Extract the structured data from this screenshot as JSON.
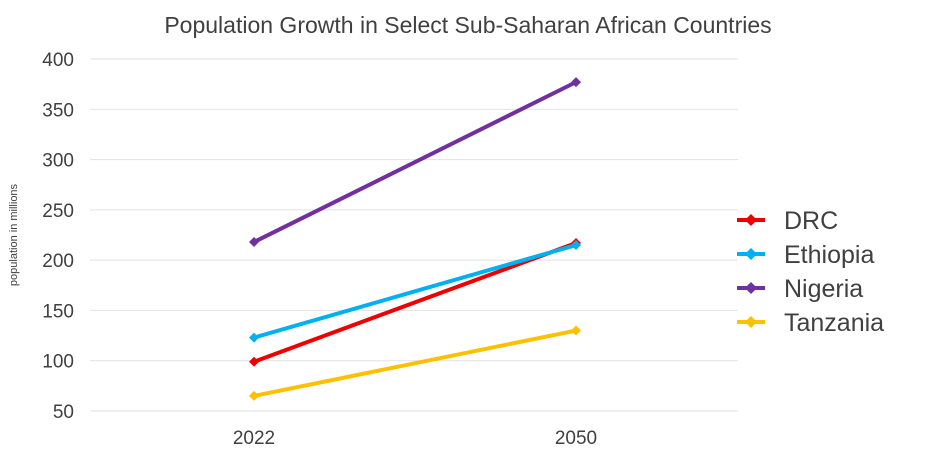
{
  "chart_data": {
    "type": "line",
    "title": "Population Growth in Select Sub-Saharan African Countries",
    "xlabel": "",
    "ylabel": "population in millions",
    "categories": [
      "2022",
      "2050"
    ],
    "ylim": [
      50,
      400
    ],
    "yticks": [
      50,
      100,
      150,
      200,
      250,
      300,
      350,
      400
    ],
    "grid": true,
    "legend_position": "right",
    "series": [
      {
        "name": "DRC",
        "values": [
          99,
          217
        ],
        "color": "#ee0000"
      },
      {
        "name": "Ethiopia",
        "values": [
          123,
          215
        ],
        "color": "#00b0f0"
      },
      {
        "name": "Nigeria",
        "values": [
          218,
          377
        ],
        "color": "#7030a0"
      },
      {
        "name": "Tanzania",
        "values": [
          65,
          130
        ],
        "color": "#ffc000"
      }
    ]
  }
}
